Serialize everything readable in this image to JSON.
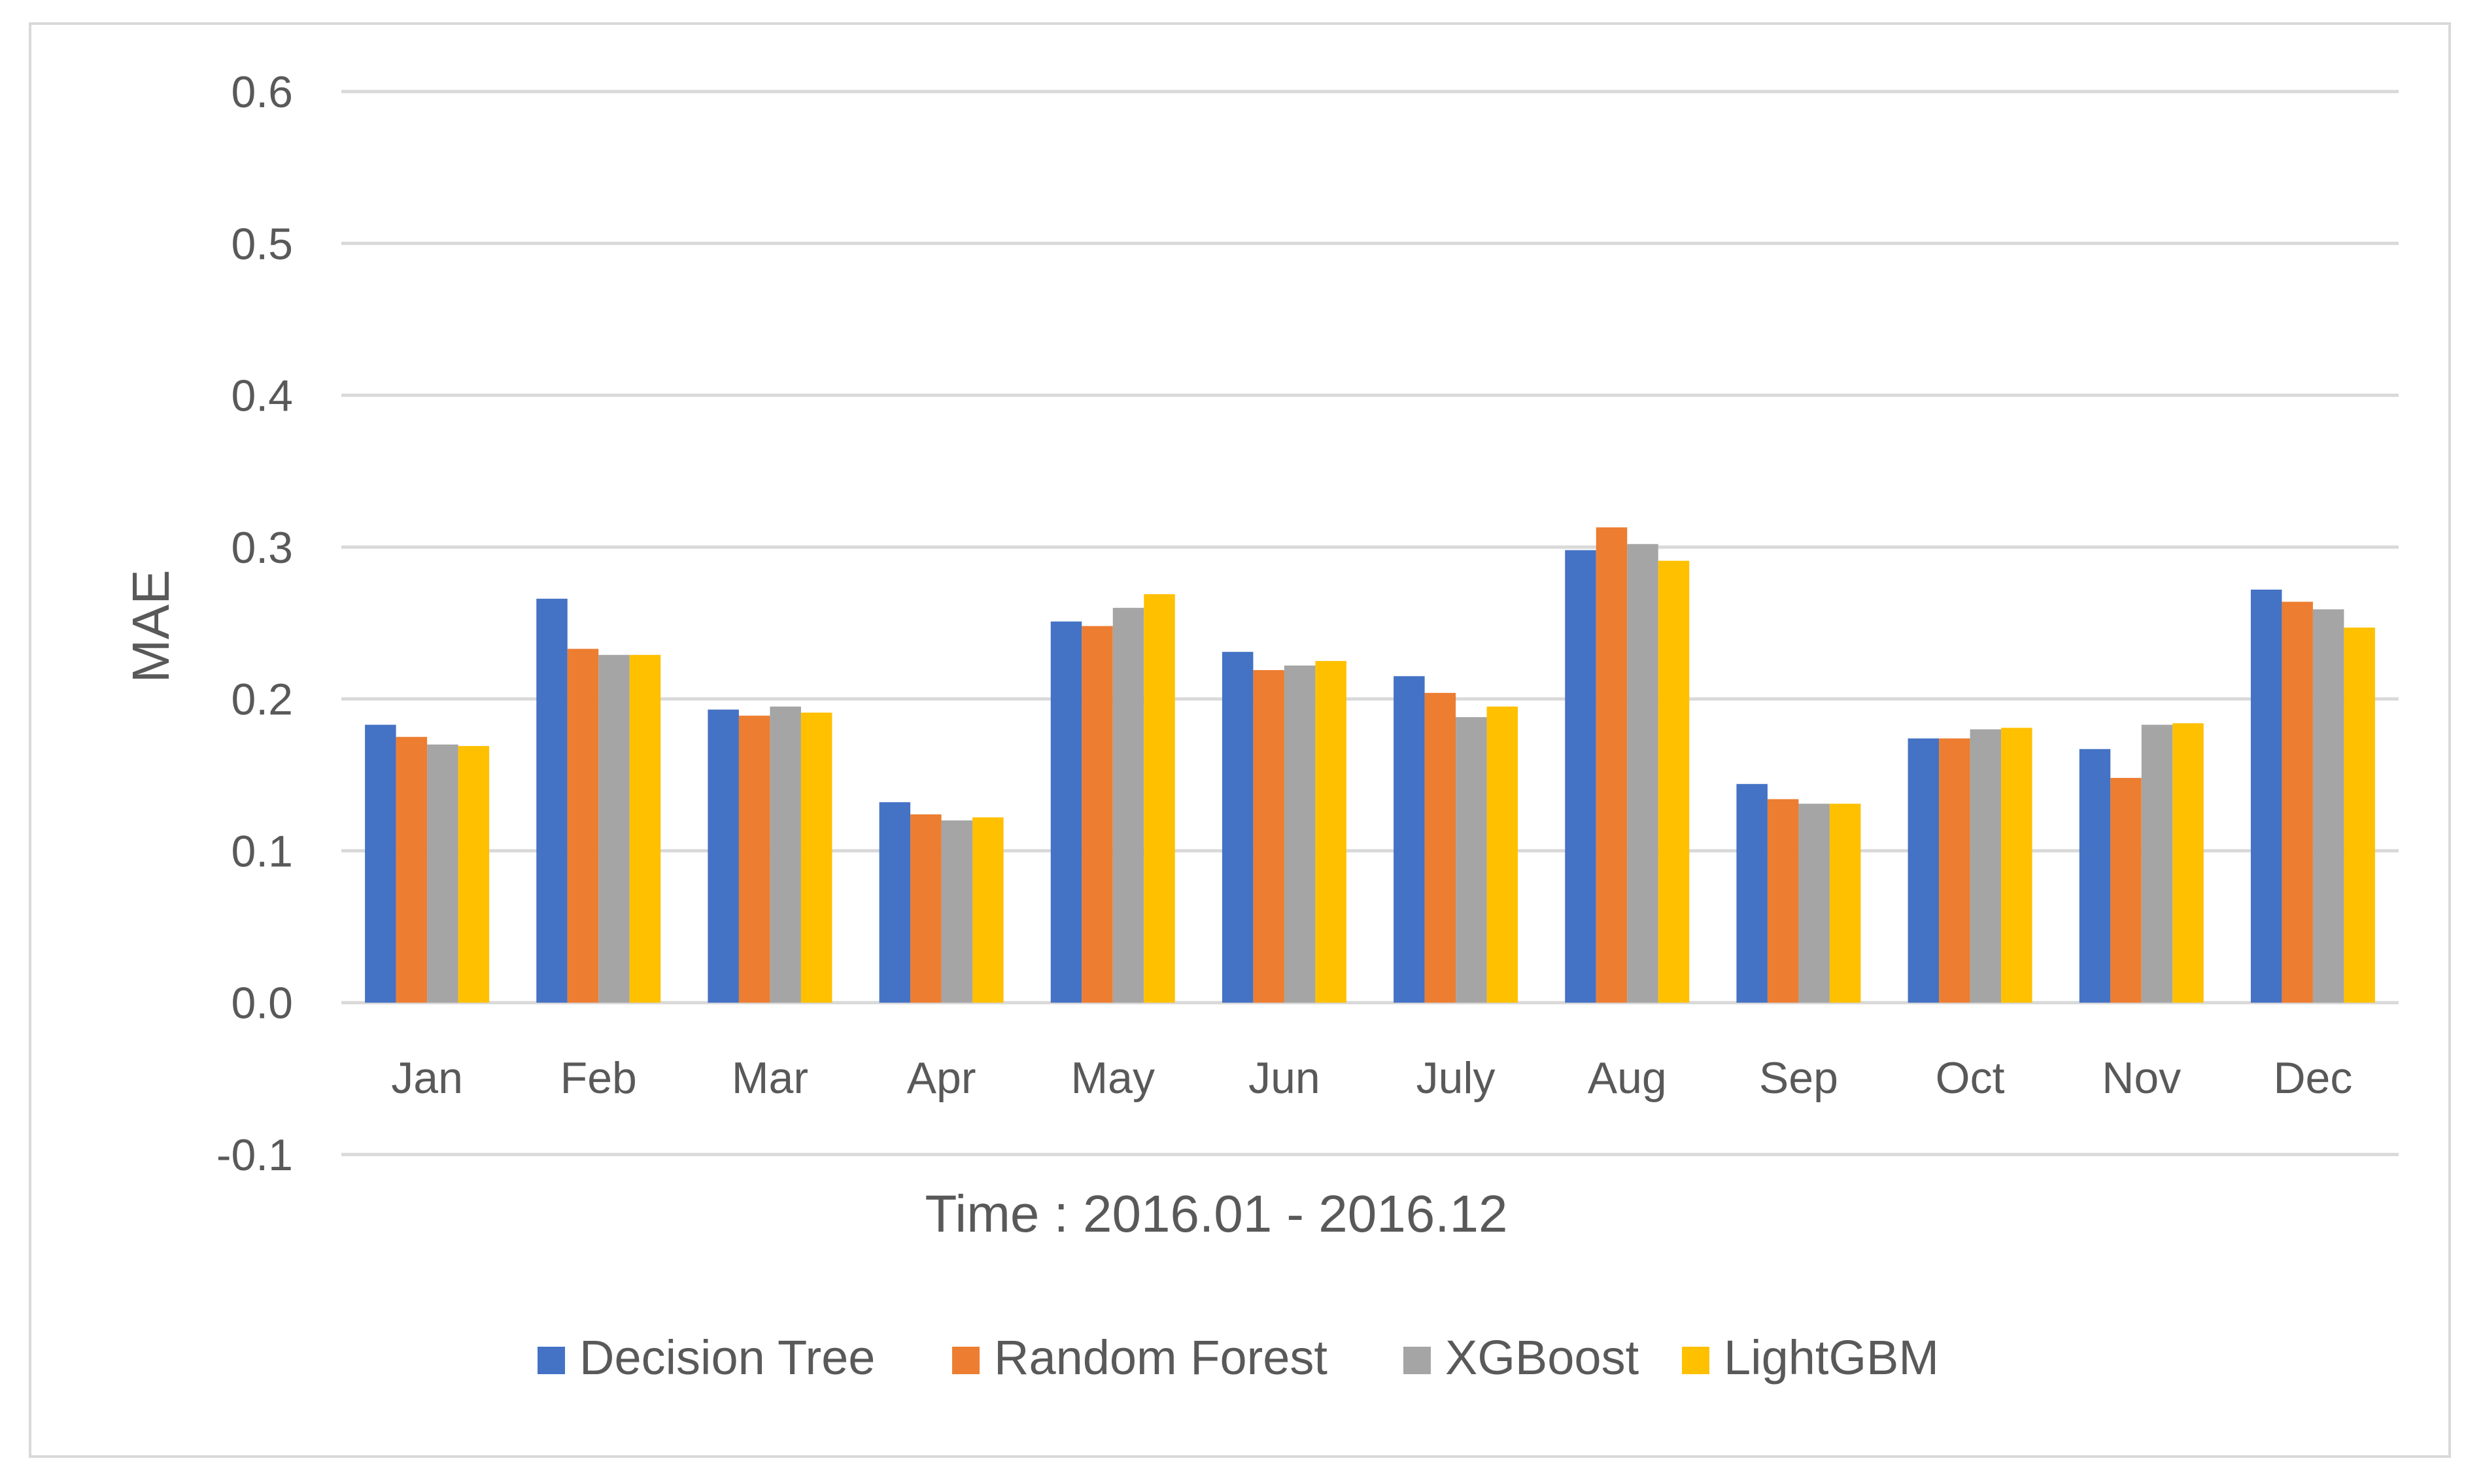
{
  "chart_data": {
    "type": "bar",
    "title": "",
    "xlabel": "Time : 2016.01 - 2016.12",
    "ylabel": "MAE",
    "ylim": [
      -0.1,
      0.6
    ],
    "yticks": [
      -0.1,
      0.0,
      0.1,
      0.2,
      0.3,
      0.4,
      0.5,
      0.6
    ],
    "ytick_labels": [
      "-0.1",
      "0.0",
      "0.1",
      "0.2",
      "0.3",
      "0.4",
      "0.5",
      "0.6"
    ],
    "grid": true,
    "legend_position": "bottom",
    "categories": [
      "Jan",
      "Feb",
      "Mar",
      "Apr",
      "May",
      "Jun",
      "July",
      "Aug",
      "Sep",
      "Oct",
      "Nov",
      "Dec"
    ],
    "series": [
      {
        "name": "Decision Tree",
        "color": "#4472C4",
        "values": [
          0.183,
          0.266,
          0.193,
          0.132,
          0.251,
          0.231,
          0.215,
          0.298,
          0.144,
          0.174,
          0.167,
          0.272
        ]
      },
      {
        "name": "Random Forest",
        "color": "#ED7D31",
        "values": [
          0.175,
          0.233,
          0.189,
          0.124,
          0.248,
          0.219,
          0.204,
          0.313,
          0.134,
          0.174,
          0.148,
          0.264
        ]
      },
      {
        "name": "XGBoost",
        "color": "#A5A5A5",
        "values": [
          0.17,
          0.229,
          0.195,
          0.12,
          0.26,
          0.222,
          0.188,
          0.302,
          0.131,
          0.18,
          0.183,
          0.259
        ]
      },
      {
        "name": "LightGBM",
        "color": "#FFC000",
        "values": [
          0.169,
          0.229,
          0.191,
          0.122,
          0.269,
          0.225,
          0.195,
          0.291,
          0.131,
          0.181,
          0.184,
          0.247
        ]
      }
    ],
    "colors": {
      "grid": "#d9d9d9",
      "text": "#595959"
    }
  }
}
